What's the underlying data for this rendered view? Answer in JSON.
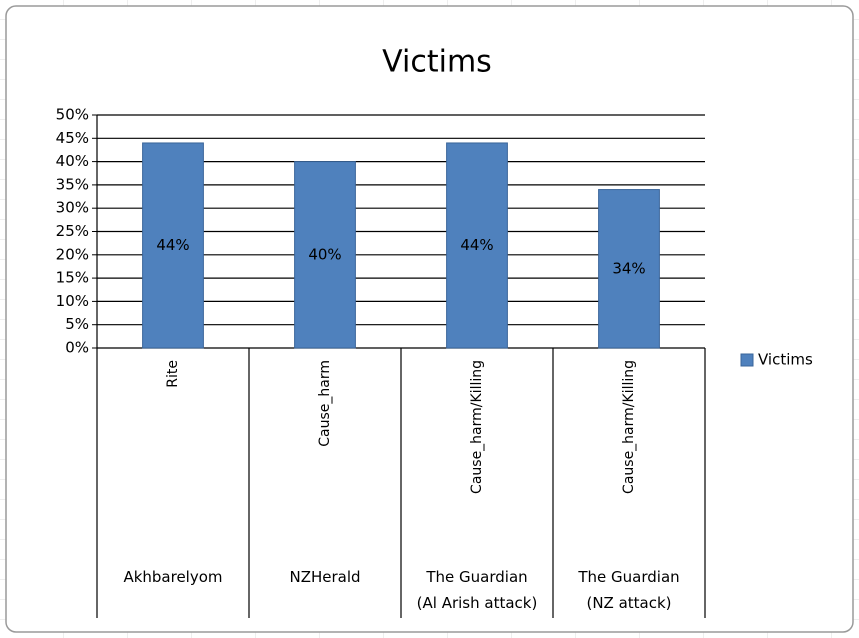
{
  "chart_data": {
    "type": "bar",
    "title": "Victims",
    "categories": [
      "Rite",
      "Cause_harm",
      "Cause_harm/Killing",
      "Cause_harm/Killing"
    ],
    "groups": [
      [
        "Akhbarelyom"
      ],
      [
        "NZHerald"
      ],
      [
        "The Guardian",
        "(Al Arish attack)"
      ],
      [
        "The Guardian",
        "(NZ attack)"
      ]
    ],
    "series": [
      {
        "name": "Victims",
        "color": "#4f81bd",
        "values": [
          44,
          40,
          44,
          34
        ],
        "value_labels": [
          "44%",
          "40%",
          "44%",
          "34%"
        ]
      }
    ],
    "ylim": [
      0,
      50
    ],
    "yticks": [
      {
        "value": 0,
        "label": "0%"
      },
      {
        "value": 5,
        "label": "5%"
      },
      {
        "value": 10,
        "label": "10%"
      },
      {
        "value": 15,
        "label": "15%"
      },
      {
        "value": 20,
        "label": "20%"
      },
      {
        "value": 25,
        "label": "25%"
      },
      {
        "value": 30,
        "label": "30%"
      },
      {
        "value": 35,
        "label": "35%"
      },
      {
        "value": 40,
        "label": "40%"
      },
      {
        "value": 45,
        "label": "45%"
      },
      {
        "value": 50,
        "label": "50%"
      }
    ],
    "grid": true,
    "legend": "right"
  }
}
